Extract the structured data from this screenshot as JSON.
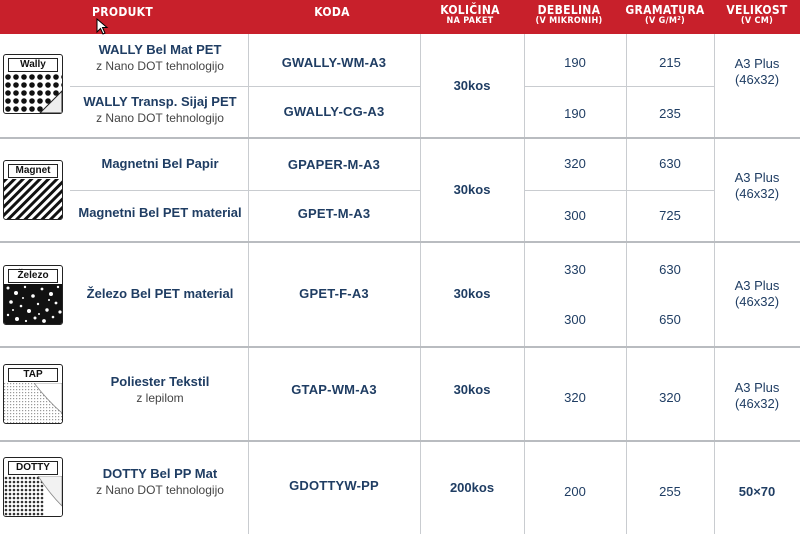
{
  "header": {
    "produkt": "PRODUKT",
    "koda": "KODA",
    "kolicina": "KOLIČINA",
    "kolicina_sub": "NA PAKET",
    "debelina": "DEBELINA",
    "debelina_sub": "(V MIKRONIH)",
    "gramatura": "GRAMATURA",
    "gramatura_sub": "(V G/M²)",
    "velikost": "VELIKOST",
    "velikost_sub": "(V CM)"
  },
  "groups": [
    {
      "icon_label": "Wally",
      "icon_name": "wally-dots-icon",
      "rows": [
        {
          "name": "WALLY Bel Mat PET",
          "sub": "z Nano DOT tehnologijo",
          "code": "GWALLY-WM-A3",
          "debelina": "190",
          "gramatura": "215"
        },
        {
          "name": "WALLY Transp. Sijaj PET",
          "sub": "z Nano DOT tehnologijo",
          "code": "GWALLY-CG-A3",
          "debelina": "190",
          "gramatura": "235"
        }
      ],
      "kolicina": "30kos",
      "velikost": "A3 Plus",
      "velikost_sub": "(46x32)"
    },
    {
      "icon_label": "Magnet",
      "icon_name": "magnet-stripes-icon",
      "rows": [
        {
          "name": "Magnetni Bel Papir",
          "code": "GPAPER-M-A3",
          "debelina": "320",
          "gramatura": "630"
        },
        {
          "name": "Magnetni Bel PET material",
          "code": "GPET-M-A3",
          "debelina": "300",
          "gramatura": "725"
        }
      ],
      "kolicina": "30kos",
      "velikost": "A3 Plus",
      "velikost_sub": "(46x32)"
    },
    {
      "icon_label": "Železo",
      "icon_name": "zelezo-speckle-icon",
      "rows": [
        {
          "name": "Železo Bel PET material",
          "code": "GPET-F-A3",
          "debelina": "330",
          "gramatura": "630"
        },
        {
          "debelina": "300",
          "gramatura": "650"
        }
      ],
      "kolicina": "30kos",
      "velikost": "A3 Plus",
      "velikost_sub": "(46x32)"
    },
    {
      "icon_label": "TAP",
      "icon_name": "tap-textile-icon",
      "rows": [
        {
          "name": "Poliester Tekstil",
          "sub": "z lepilom",
          "code": "GTAP-WM-A3",
          "debelina": "320",
          "gramatura": "320"
        }
      ],
      "kolicina": "30kos",
      "velikost": "A3 Plus",
      "velikost_sub": "(46x32)"
    },
    {
      "icon_label": "DOTTY",
      "icon_name": "dotty-halftone-icon",
      "rows": [
        {
          "name": "DOTTY Bel PP Mat",
          "sub": "z Nano DOT tehnologijo",
          "code": "GDOTTYW-PP",
          "debelina": "200",
          "gramatura": "255"
        }
      ],
      "kolicina": "200kos",
      "velikost": "50×70"
    }
  ]
}
